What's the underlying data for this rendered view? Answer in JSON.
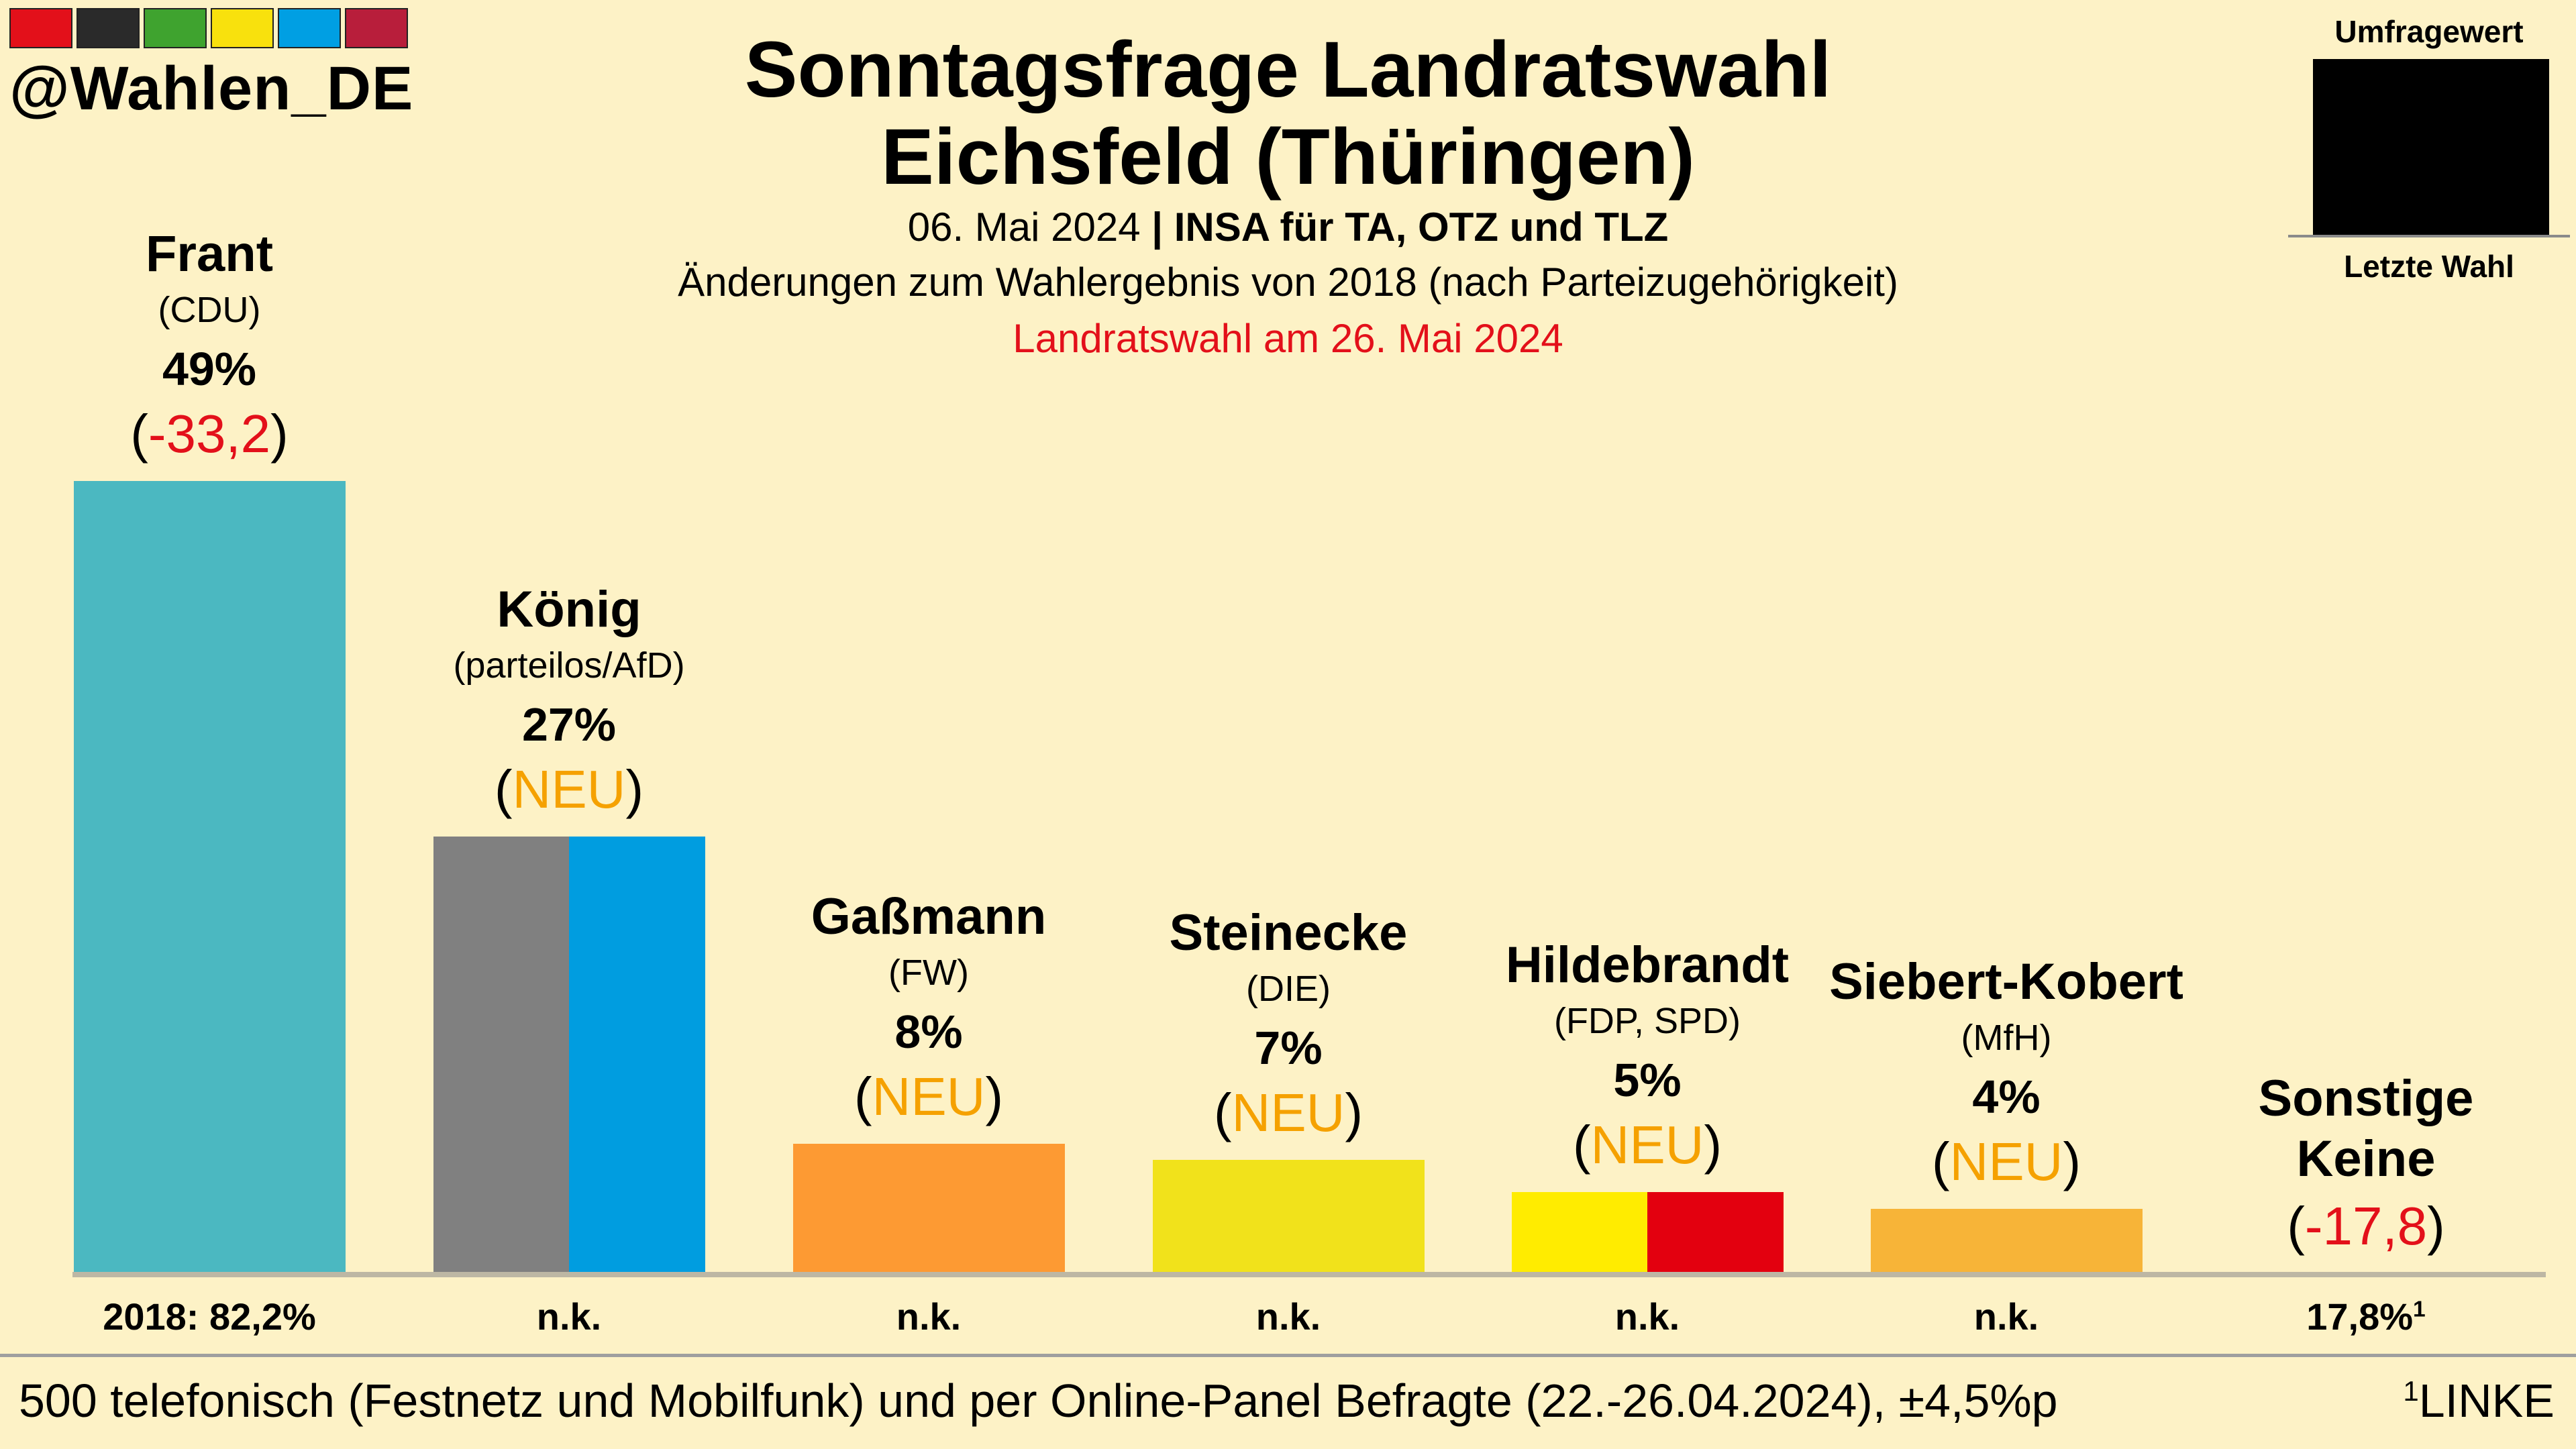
{
  "brand": {
    "handle": "@Wahlen_DE",
    "stripe_colors": [
      "#e3101a",
      "#2a2a2a",
      "#3fa32f",
      "#f8e10d",
      "#009fe3",
      "#b81e3b"
    ]
  },
  "header": {
    "title_line1": "Sonntagsfrage Landratswahl",
    "title_line2": "Eichsfeld (Thüringen)",
    "date": "06. Mai 2024",
    "separator": "|",
    "pollster": "INSA für TA, OTZ und TLZ",
    "changes_note": "Änderungen zum Wahlergebnis von 2018 (nach Parteizugehörigkeit)",
    "election_note": "Landratswahl am 26. Mai 2024"
  },
  "legend": {
    "top_label": "Umfragewert",
    "bottom_label": "Letzte Wahl"
  },
  "chart_data": {
    "type": "bar",
    "title": "Sonntagsfrage Landratswahl Eichsfeld (Thüringen)",
    "ylim": [
      0,
      100
    ],
    "grid": false,
    "legend_position": "top-right",
    "categories": [
      "Frant",
      "König",
      "Gaßmann",
      "Steinecke",
      "Hildebrandt",
      "Siebert-Kobert",
      "Sonstige"
    ],
    "candidates": [
      {
        "name": "Frant",
        "party": "(CDU)",
        "value": 49,
        "value_label": "49%",
        "change": "-33,2",
        "change_type": "neg",
        "previous_label": "2018: 82,2%",
        "colors": [
          "#4bb8c1"
        ]
      },
      {
        "name": "König",
        "party": "(parteilos/AfD)",
        "value": 27,
        "value_label": "27%",
        "change": "NEU",
        "change_type": "neu",
        "previous_label": "n.k.",
        "colors": [
          "#808080",
          "#009de0"
        ]
      },
      {
        "name": "Gaßmann",
        "party": "(FW)",
        "value": 8,
        "value_label": "8%",
        "change": "NEU",
        "change_type": "neu",
        "previous_label": "n.k.",
        "colors": [
          "#fd9a33"
        ]
      },
      {
        "name": "Steinecke",
        "party": "(DIE)",
        "value": 7,
        "value_label": "7%",
        "change": "NEU",
        "change_type": "neu",
        "previous_label": "n.k.",
        "colors": [
          "#f1e21b"
        ]
      },
      {
        "name": "Hildebrandt",
        "party": "(FDP, SPD)",
        "value": 5,
        "value_label": "5%",
        "change": "NEU",
        "change_type": "neu",
        "previous_label": "n.k.",
        "colors": [
          "#ffec00",
          "#e3000f"
        ]
      },
      {
        "name": "Siebert-Kobert",
        "party": "(MfH)",
        "value": 4,
        "value_label": "4%",
        "change": "NEU",
        "change_type": "neu",
        "previous_label": "n.k.",
        "colors": [
          "#f7b438"
        ]
      },
      {
        "name": "Sonstige",
        "party": "",
        "value": 0,
        "value_label": "Keine",
        "change": "-17,8",
        "change_type": "neg",
        "previous_label": "17,8%",
        "previous_sup": "1",
        "colors": []
      }
    ]
  },
  "footer": {
    "note": "500 telefonisch (Festnetz und Mobilfunk) und per Online-Panel Befragte (22.-26.04.2024), ±4,5%p",
    "footnote_sup": "1",
    "footnote_text": "LINKE"
  }
}
